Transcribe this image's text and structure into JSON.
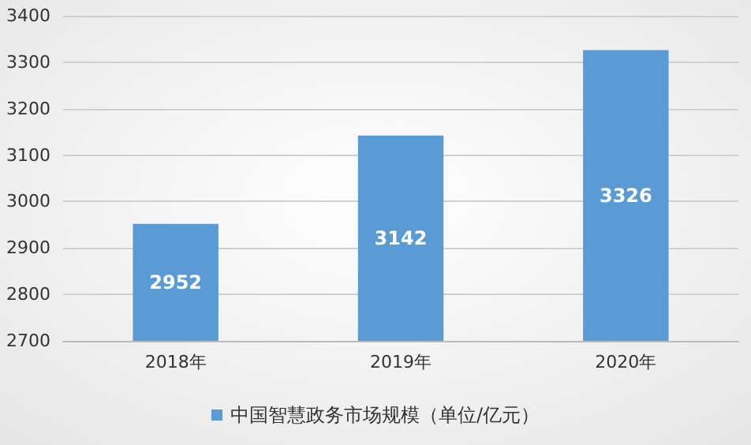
{
  "chart_data": {
    "type": "bar",
    "categories": [
      "2018年",
      "2019年",
      "2020年"
    ],
    "series": [
      {
        "name": "中国智慧政务市场规模（单位/亿元）",
        "color": "#5b9bd5",
        "values": [
          2952,
          3142,
          3326
        ]
      }
    ],
    "ylim": [
      2700,
      3400
    ],
    "yticks": [
      2700,
      2800,
      2900,
      3000,
      3100,
      3200,
      3300,
      3400
    ],
    "grid": "y",
    "legend": "bottom",
    "data_labels": true
  }
}
